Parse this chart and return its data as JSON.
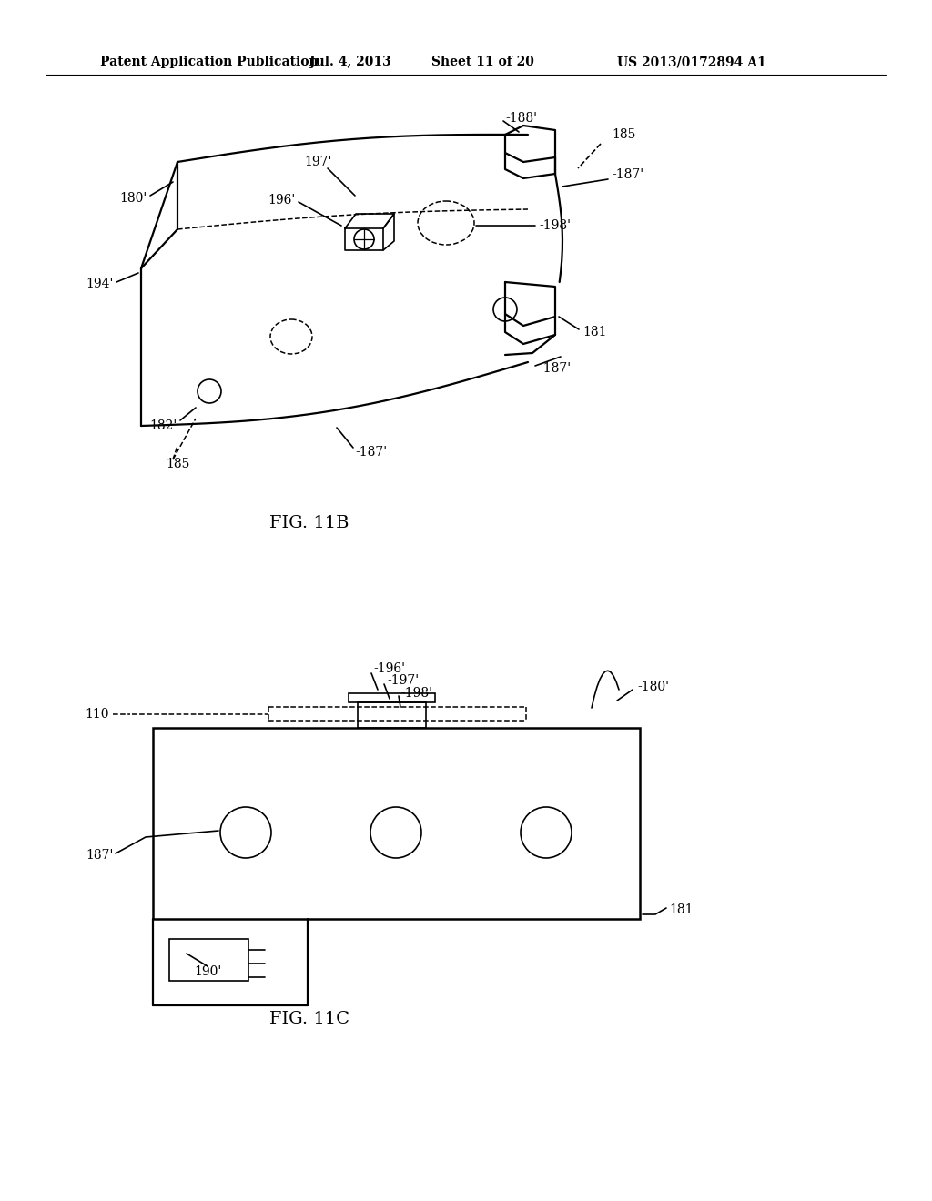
{
  "background_color": "#ffffff",
  "header_text": "Patent Application Publication",
  "header_date": "Jul. 4, 2013",
  "header_sheet": "Sheet 11 of 20",
  "header_patent": "US 2013/0172894 A1",
  "fig11b_label": "FIG. 11B",
  "fig11c_label": "FIG. 11C"
}
